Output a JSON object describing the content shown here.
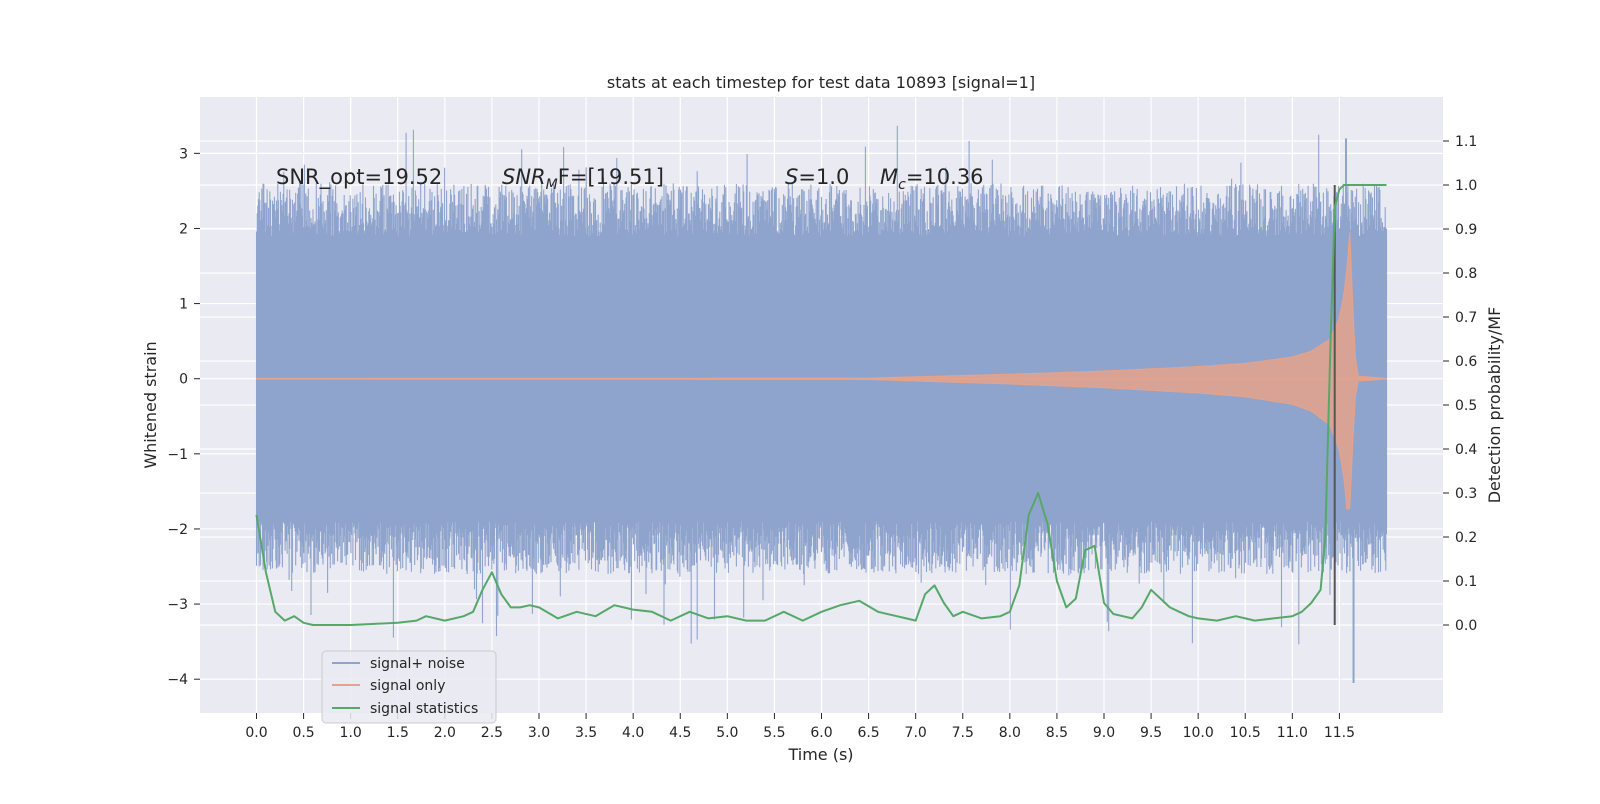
{
  "chart_data": {
    "type": "line",
    "title": "stats at each timestep for test data 10893 [signal=1]",
    "xlabel": "Time (s)",
    "ylabel_left": "Whitened strain",
    "ylabel_right": "Detection probability/MF",
    "xlim": [
      -0.6,
      12.6
    ],
    "ylim_left": [
      -4.45,
      3.75
    ],
    "ylim_right": [
      -0.2,
      1.2
    ],
    "x_ticks": [
      0.0,
      0.5,
      1.0,
      1.5,
      2.0,
      2.5,
      3.0,
      3.5,
      4.0,
      4.5,
      5.0,
      5.5,
      6.0,
      6.5,
      7.0,
      7.5,
      8.0,
      8.5,
      9.0,
      9.5,
      10.0,
      10.5,
      11.0,
      11.5
    ],
    "x_tick_labels": [
      "0.0",
      "0.5",
      "1.0",
      "1.5",
      "2.0",
      "2.5",
      "3.0",
      "3.5",
      "4.0",
      "4.5",
      "5.0",
      "5.5",
      "6.0",
      "6.5",
      "7.0",
      "7.5",
      "8.0",
      "8.5",
      "9.0",
      "9.5",
      "10.0",
      "10.5",
      "11.0",
      "11.5"
    ],
    "y_left_ticks": [
      -4,
      -3,
      -2,
      -1,
      0,
      1,
      2,
      3
    ],
    "y_left_tick_labels": [
      "−4",
      "−3",
      "−2",
      "−1",
      "0",
      "1",
      "2",
      "3"
    ],
    "y_right_ticks": [
      0.0,
      0.1,
      0.2,
      0.3,
      0.4,
      0.5,
      0.6,
      0.7,
      0.8,
      0.9,
      1.0,
      1.1
    ],
    "y_right_tick_labels": [
      "0.0",
      "0.1",
      "0.2",
      "0.3",
      "0.4",
      "0.5",
      "0.6",
      "0.7",
      "0.8",
      "0.9",
      "1.0",
      "1.1"
    ],
    "grid": true,
    "legend_position": "lower-left",
    "annotations": {
      "snr_opt": "SNR_opt=19.52",
      "snr_mf_base": "SNR",
      "snr_mf_sub": "M",
      "snr_mf_rest": "F=[19.51]",
      "s_symbol": "S",
      "s_value": "=1.0",
      "mc_symbol": "M",
      "mc_sub": "c",
      "mc_value": "=10.36"
    },
    "vline_x": 11.45,
    "series": [
      {
        "name": "signal+ noise",
        "color": "#8fa4cc",
        "axis": "left",
        "x_range": [
          0.0,
          12.0
        ],
        "envelope_abs": 2.0,
        "peak_max": 3.4,
        "peak_min": -4.05
      },
      {
        "name": "signal only",
        "color": "#e5a389",
        "axis": "left",
        "x": [
          0.0,
          6.5,
          7.0,
          8.0,
          9.0,
          10.0,
          10.5,
          11.0,
          11.2,
          11.4,
          11.5,
          11.55,
          11.6,
          11.62,
          11.65,
          11.7,
          12.0
        ],
        "envelope": [
          0.005,
          0.01,
          0.03,
          0.07,
          0.12,
          0.19,
          0.24,
          0.34,
          0.43,
          0.62,
          0.95,
          1.35,
          2.0,
          2.6,
          0.5,
          0.04,
          0.005
        ]
      },
      {
        "name": "signal statistics",
        "color": "#55a868",
        "axis": "right",
        "x": [
          0.0,
          0.1,
          0.2,
          0.3,
          0.4,
          0.5,
          0.6,
          1.0,
          1.5,
          1.7,
          1.8,
          2.0,
          2.2,
          2.3,
          2.4,
          2.5,
          2.6,
          2.7,
          2.8,
          2.9,
          3.0,
          3.2,
          3.4,
          3.6,
          3.8,
          4.0,
          4.2,
          4.4,
          4.6,
          4.8,
          5.0,
          5.2,
          5.4,
          5.6,
          5.8,
          6.0,
          6.2,
          6.4,
          6.6,
          6.8,
          6.9,
          7.0,
          7.1,
          7.2,
          7.3,
          7.4,
          7.5,
          7.7,
          7.9,
          8.0,
          8.1,
          8.2,
          8.3,
          8.4,
          8.5,
          8.6,
          8.7,
          8.8,
          8.9,
          9.0,
          9.1,
          9.2,
          9.3,
          9.4,
          9.5,
          9.6,
          9.7,
          9.8,
          9.9,
          10.0,
          10.2,
          10.4,
          10.5,
          10.6,
          10.8,
          11.0,
          11.1,
          11.2,
          11.3,
          11.35,
          11.4,
          11.45,
          11.5,
          11.55,
          11.6,
          11.7,
          11.8,
          11.9,
          12.0
        ],
        "y": [
          0.25,
          0.12,
          0.03,
          0.01,
          0.02,
          0.005,
          0.0,
          0.0,
          0.005,
          0.01,
          0.02,
          0.01,
          0.02,
          0.03,
          0.08,
          0.12,
          0.07,
          0.04,
          0.04,
          0.045,
          0.04,
          0.015,
          0.03,
          0.02,
          0.045,
          0.035,
          0.03,
          0.01,
          0.03,
          0.015,
          0.02,
          0.01,
          0.01,
          0.03,
          0.01,
          0.03,
          0.045,
          0.055,
          0.03,
          0.02,
          0.015,
          0.01,
          0.07,
          0.09,
          0.05,
          0.02,
          0.03,
          0.015,
          0.02,
          0.03,
          0.09,
          0.25,
          0.3,
          0.23,
          0.1,
          0.04,
          0.06,
          0.17,
          0.18,
          0.05,
          0.025,
          0.02,
          0.015,
          0.04,
          0.08,
          0.06,
          0.04,
          0.03,
          0.02,
          0.015,
          0.01,
          0.02,
          0.015,
          0.01,
          0.015,
          0.02,
          0.03,
          0.05,
          0.08,
          0.2,
          0.6,
          0.95,
          0.99,
          1.0,
          1.0,
          1.0,
          1.0,
          1.0,
          1.0
        ]
      }
    ]
  }
}
